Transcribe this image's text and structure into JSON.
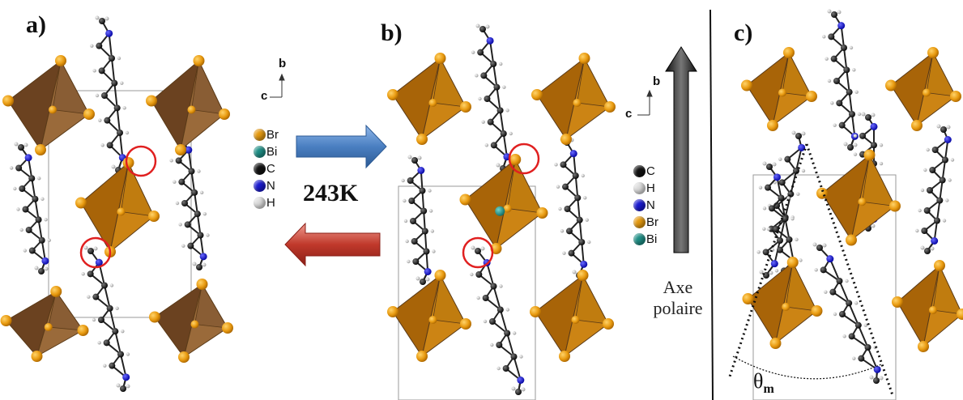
{
  "panels": {
    "a": {
      "label": "a)"
    },
    "b": {
      "label": "b)"
    },
    "c": {
      "label": "c)"
    }
  },
  "axes": {
    "b_axis": "b",
    "c_axis": "c"
  },
  "transition": {
    "temperature": "243K"
  },
  "legend_a": [
    {
      "label": "Br",
      "color": "#e59a10"
    },
    {
      "label": "Bi",
      "color": "#1f8f86"
    },
    {
      "label": "C",
      "color": "#111111"
    },
    {
      "label": "N",
      "color": "#1a1ad0"
    },
    {
      "label": "H",
      "color": "#dddddd"
    }
  ],
  "legend_b": [
    {
      "label": "C",
      "color": "#111111"
    },
    {
      "label": "H",
      "color": "#dddddd"
    },
    {
      "label": "N",
      "color": "#1a1ad0"
    },
    {
      "label": "Br",
      "color": "#e59a10"
    },
    {
      "label": "Bi",
      "color": "#1f8f86"
    }
  ],
  "polar_axis": {
    "line1": "Axe",
    "line2": "polaire"
  },
  "angle": {
    "symbol": "θ",
    "subscript": "m"
  },
  "colors": {
    "octahedron_dark": "#8b5a2b",
    "octahedron_light": "#c07810",
    "bromine": "#e8a012",
    "arrow_forward": "#4a7fc1",
    "arrow_backward": "#c0392b",
    "highlight_circle": "#e02020"
  }
}
